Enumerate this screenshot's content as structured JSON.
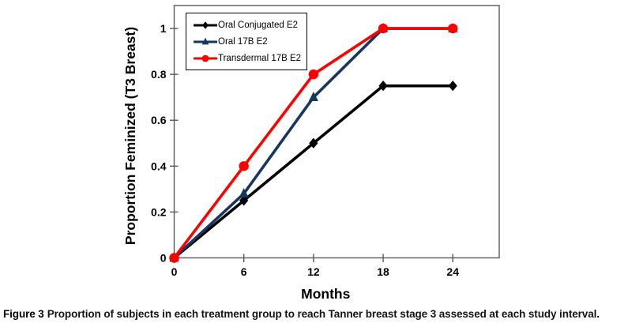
{
  "figure": {
    "caption_label": "Figure 3",
    "caption_text": "Proportion of subjects in each treatment group to reach Tanner breast stage 3 assessed at each study interval."
  },
  "chart_data": {
    "type": "line",
    "title": "",
    "xlabel": "Months",
    "ylabel": "Proportion Feminized (T3 Breast)",
    "x": [
      0,
      6,
      12,
      18,
      24
    ],
    "x_tick_labels": [
      "0",
      "6",
      "12",
      "18",
      "24"
    ],
    "y_ticks": [
      0,
      0.2,
      0.4,
      0.6,
      0.8,
      1
    ],
    "y_tick_labels": [
      "0",
      "0.2",
      "0.4",
      "0.6",
      "0.8",
      "1"
    ],
    "xlim": [
      0,
      28
    ],
    "ylim": [
      0,
      1.1
    ],
    "grid": false,
    "legend_position": "top-left-inside",
    "axis_color": "#595959",
    "text_color": "#000000",
    "series": [
      {
        "name": "Oral Conjugated E2",
        "color": "#000000",
        "marker": "diamond",
        "values": [
          0,
          0.25,
          0.5,
          0.75,
          0.75
        ]
      },
      {
        "name": "Oral 17B E2",
        "color": "#17375E",
        "marker": "triangle",
        "values": [
          0,
          0.28,
          0.7,
          1,
          1
        ]
      },
      {
        "name": "Transdermal 17B E2",
        "color": "#FF0000",
        "marker": "circle",
        "values": [
          0,
          0.4,
          0.8,
          1,
          1
        ]
      }
    ]
  }
}
